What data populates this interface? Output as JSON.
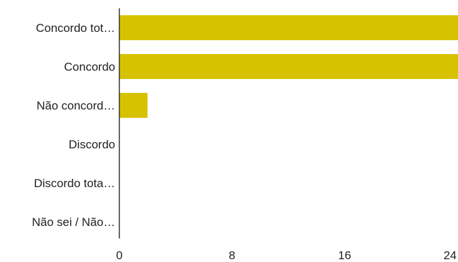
{
  "chart_data": {
    "type": "bar",
    "orientation": "horizontal",
    "categories": [
      "Concordo tot…",
      "Concordo",
      "Não concord…",
      "Discordo",
      "Discordo tota…",
      "Não sei / Não…"
    ],
    "values": [
      26,
      26,
      2,
      0,
      0,
      0
    ],
    "xlim": [
      0,
      24
    ],
    "xticks": [
      0,
      8,
      16,
      24
    ],
    "grid": false,
    "legend": "none",
    "bar_color": "#d6c200",
    "axis_color": "#333333",
    "title": "",
    "xlabel": "",
    "ylabel": ""
  }
}
